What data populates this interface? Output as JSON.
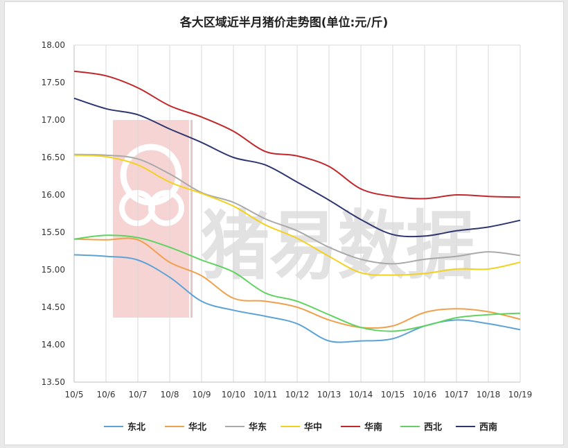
{
  "chart_data": {
    "type": "line",
    "title": "各大区域近半月猪价走势图(单位:元/斤)",
    "xlabel": "",
    "ylabel": "",
    "x": [
      "10/5",
      "10/6",
      "10/7",
      "10/8",
      "10/9",
      "10/10",
      "10/11",
      "10/12",
      "10/13",
      "10/14",
      "10/15",
      "10/16",
      "10/17",
      "10/18",
      "10/19"
    ],
    "ylim": [
      13.5,
      18.0
    ],
    "yticks": [
      "13.50",
      "14.00",
      "14.50",
      "15.00",
      "15.50",
      "16.00",
      "16.50",
      "17.00",
      "17.50",
      "18.00"
    ],
    "grid": "vertical",
    "legend": "bottom",
    "watermark": "猪易数据",
    "series": [
      {
        "name": "东北",
        "color": "#5ba3d6",
        "values": [
          15.2,
          15.18,
          15.13,
          14.9,
          14.58,
          14.46,
          14.38,
          14.28,
          14.05,
          14.05,
          14.08,
          14.25,
          14.33,
          14.28,
          14.2
        ]
      },
      {
        "name": "华北",
        "color": "#f0a04b",
        "values": [
          15.41,
          15.4,
          15.4,
          15.1,
          14.92,
          14.62,
          14.58,
          14.5,
          14.33,
          14.23,
          14.25,
          14.43,
          14.48,
          14.44,
          14.34
        ]
      },
      {
        "name": "华东",
        "color": "#a9a9a9",
        "values": [
          16.54,
          16.53,
          16.48,
          16.28,
          16.03,
          15.9,
          15.68,
          15.52,
          15.3,
          15.14,
          15.08,
          15.14,
          15.18,
          15.24,
          15.19
        ]
      },
      {
        "name": "华中",
        "color": "#f2d21e",
        "values": [
          16.53,
          16.51,
          16.4,
          16.17,
          16.02,
          15.85,
          15.6,
          15.42,
          15.18,
          14.96,
          14.93,
          14.95,
          15.01,
          15.01,
          15.1
        ]
      },
      {
        "name": "华南",
        "color": "#c0262a",
        "values": [
          17.65,
          17.59,
          17.43,
          17.19,
          17.04,
          16.85,
          16.58,
          16.52,
          16.38,
          16.08,
          15.98,
          15.95,
          16.0,
          15.98,
          15.97
        ]
      },
      {
        "name": "西北",
        "color": "#5fd35f",
        "values": [
          15.41,
          15.46,
          15.43,
          15.3,
          15.13,
          14.97,
          14.69,
          14.58,
          14.4,
          14.23,
          14.18,
          14.25,
          14.36,
          14.4,
          14.42
        ]
      },
      {
        "name": "西南",
        "color": "#2e3670",
        "values": [
          17.29,
          17.15,
          17.07,
          16.88,
          16.7,
          16.5,
          16.4,
          16.17,
          15.93,
          15.67,
          15.47,
          15.45,
          15.52,
          15.57,
          15.66
        ]
      }
    ]
  }
}
